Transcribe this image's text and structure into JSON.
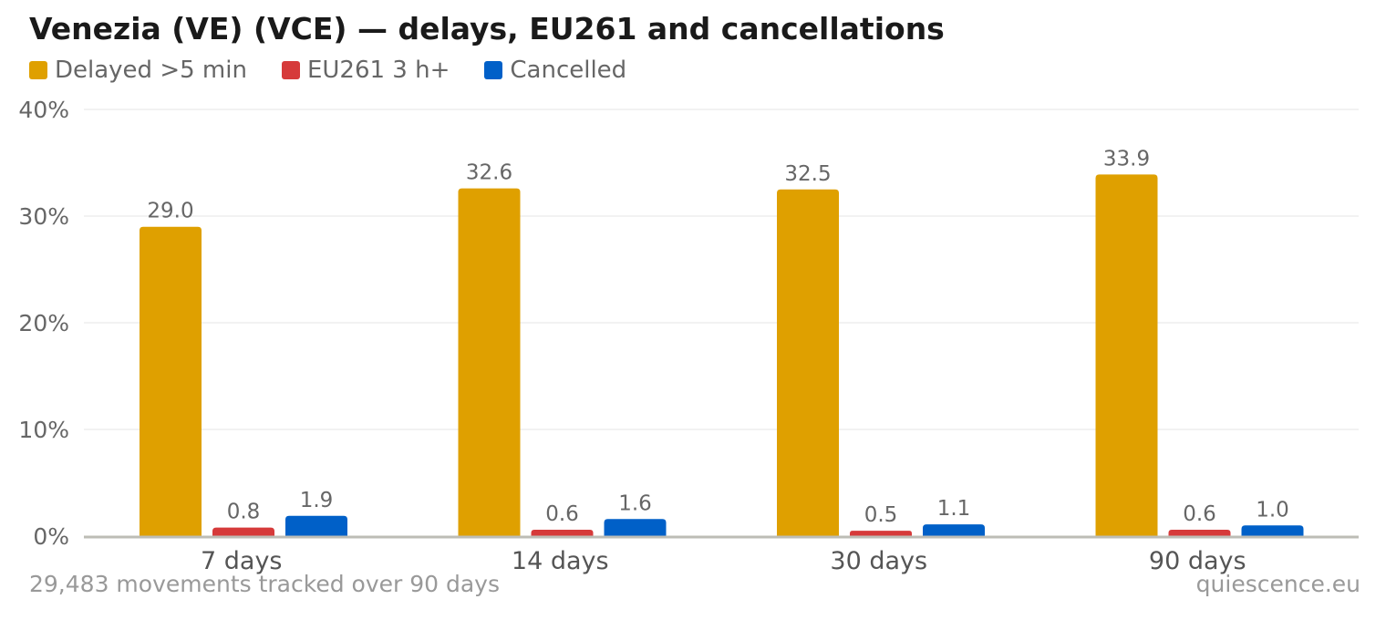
{
  "title": "Venezia (VE) (VCE) — delays, EU261 and cancellations",
  "footer": {
    "note": "29,483 movements tracked over 90 days",
    "source": "quiescence.eu"
  },
  "chart_data": {
    "type": "bar",
    "title": "Venezia (VE) (VCE) — delays, EU261 and cancellations",
    "xlabel": "",
    "ylabel": "",
    "ylim": [
      0,
      40
    ],
    "yticks": [
      0,
      10,
      20,
      30,
      40
    ],
    "ytick_labels": [
      "0%",
      "10%",
      "20%",
      "30%",
      "40%"
    ],
    "grid": true,
    "legend_position": "top-left",
    "categories": [
      "7 days",
      "14 days",
      "30 days",
      "90 days"
    ],
    "series": [
      {
        "name": "Delayed >5 min",
        "color": "#dfa000",
        "values": [
          29.0,
          32.6,
          32.5,
          33.9
        ],
        "labels": [
          "29.0",
          "32.6",
          "32.5",
          "33.9"
        ]
      },
      {
        "name": "EU261 3 h+",
        "color": "#d63a3a",
        "values": [
          0.8,
          0.6,
          0.5,
          0.6
        ],
        "labels": [
          "0.8",
          "0.6",
          "0.5",
          "0.6"
        ]
      },
      {
        "name": "Cancelled",
        "color": "#0060c8",
        "values": [
          1.9,
          1.6,
          1.1,
          1.0
        ],
        "labels": [
          "1.9",
          "1.6",
          "1.1",
          "1.0"
        ]
      }
    ]
  }
}
